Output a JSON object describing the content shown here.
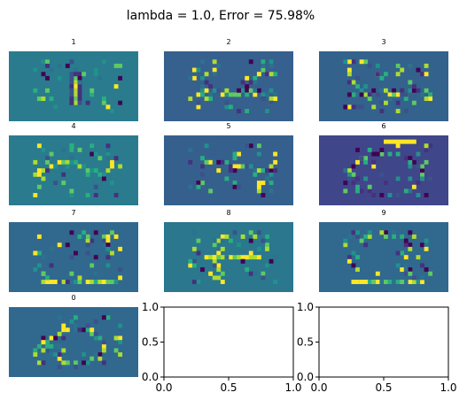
{
  "figure": {
    "title": "lambda = 1.0, Error = 75.98%"
  },
  "chart_data": {
    "type": "heatmap",
    "title": "lambda = 1.0, Error = 75.98%",
    "colormap": "viridis",
    "grid_shape": [
      4,
      3
    ],
    "panels": [
      {
        "title": "1",
        "background": "#2a7b8e",
        "pattern": "vertical-center"
      },
      {
        "title": "2",
        "background": "#36608d",
        "pattern": "horizontal-strokes"
      },
      {
        "title": "3",
        "background": "#33628d",
        "pattern": "horizontal-strokes"
      },
      {
        "title": "4",
        "background": "#2a7b8e",
        "pattern": "curve-left"
      },
      {
        "title": "5",
        "background": "#35608d",
        "pattern": "diagonal-right"
      },
      {
        "title": "6",
        "background": "#40468a",
        "pattern": "loop"
      },
      {
        "title": "7",
        "background": "#31688e",
        "pattern": "bottom-stroke"
      },
      {
        "title": "8",
        "background": "#2a778e",
        "pattern": "bright-center"
      },
      {
        "title": "9",
        "background": "#31688e",
        "pattern": "bottom-stroke"
      },
      {
        "title": "0",
        "background": "#31688e",
        "pattern": "ring"
      }
    ],
    "empty_axes": [
      {
        "xticks": [
          "0.0",
          "0.5",
          "1.0"
        ],
        "yticks": [
          "0.0",
          "0.5",
          "1.0"
        ],
        "xlim": [
          0,
          1
        ],
        "ylim": [
          0,
          1
        ]
      },
      {
        "xticks": [
          "0.0",
          "0.5",
          "1.0"
        ],
        "yticks": [
          "0.0",
          "0.5",
          "1.0"
        ],
        "xlim": [
          0,
          1
        ],
        "ylim": [
          0,
          1
        ]
      }
    ]
  }
}
